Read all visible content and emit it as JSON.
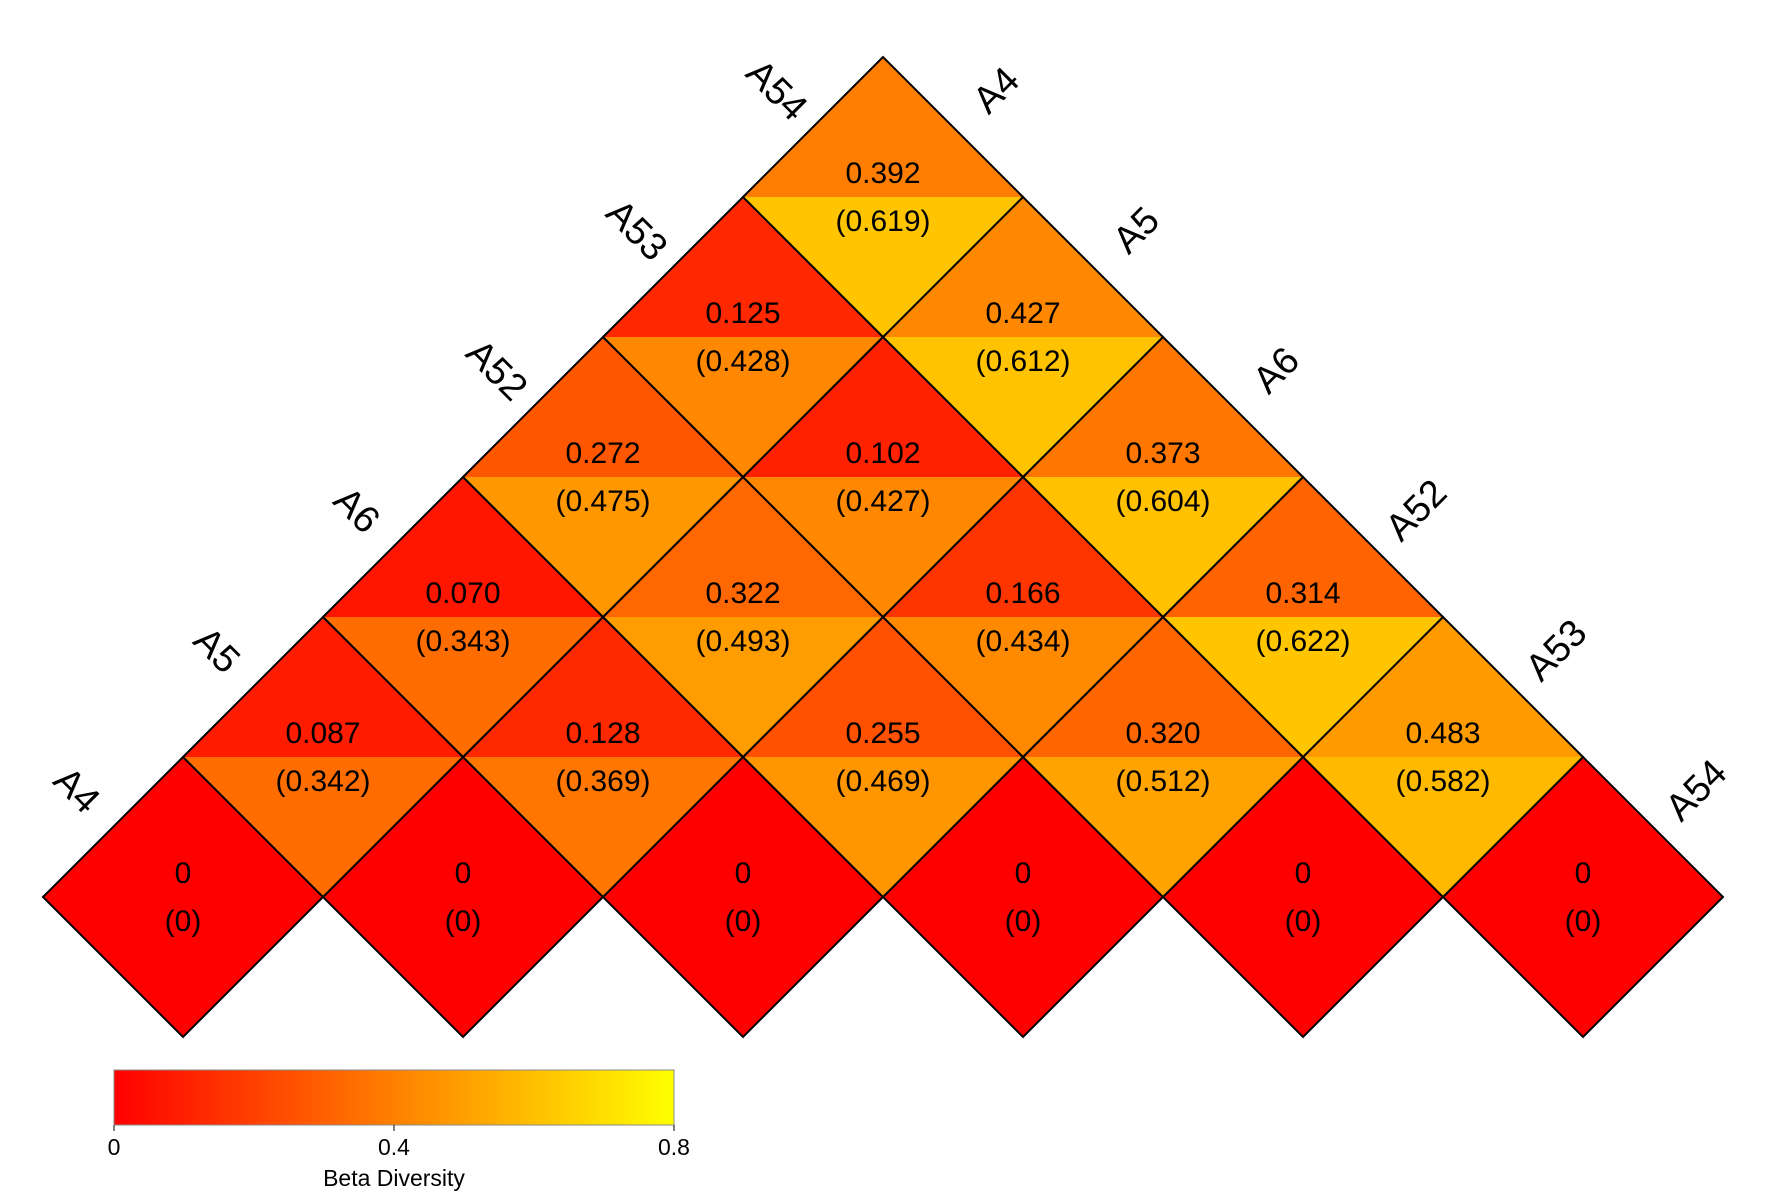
{
  "chart_data": {
    "type": "heatmap",
    "layout": "upper-triangle rotated 45 degrees",
    "samples": [
      "A4",
      "A5",
      "A6",
      "A52",
      "A53",
      "A54"
    ],
    "cells": [
      {
        "row": "A4",
        "col": "A4",
        "value": "0",
        "paren": "(0)",
        "v": 0,
        "p": 0
      },
      {
        "row": "A5",
        "col": "A5",
        "value": "0",
        "paren": "(0)",
        "v": 0,
        "p": 0
      },
      {
        "row": "A6",
        "col": "A6",
        "value": "0",
        "paren": "(0)",
        "v": 0,
        "p": 0
      },
      {
        "row": "A52",
        "col": "A52",
        "value": "0",
        "paren": "(0)",
        "v": 0,
        "p": 0
      },
      {
        "row": "A53",
        "col": "A53",
        "value": "0",
        "paren": "(0)",
        "v": 0,
        "p": 0
      },
      {
        "row": "A54",
        "col": "A54",
        "value": "0",
        "paren": "(0)",
        "v": 0,
        "p": 0
      },
      {
        "row": "A4",
        "col": "A5",
        "value": "0.087",
        "paren": "(0.342)",
        "v": 0.087,
        "p": 0.342
      },
      {
        "row": "A5",
        "col": "A6",
        "value": "0.128",
        "paren": "(0.369)",
        "v": 0.128,
        "p": 0.369
      },
      {
        "row": "A6",
        "col": "A52",
        "value": "0.255",
        "paren": "(0.469)",
        "v": 0.255,
        "p": 0.469
      },
      {
        "row": "A52",
        "col": "A53",
        "value": "0.320",
        "paren": "(0.512)",
        "v": 0.32,
        "p": 0.512
      },
      {
        "row": "A53",
        "col": "A54",
        "value": "0.483",
        "paren": "(0.582)",
        "v": 0.483,
        "p": 0.582
      },
      {
        "row": "A4",
        "col": "A6",
        "value": "0.070",
        "paren": "(0.343)",
        "v": 0.07,
        "p": 0.343
      },
      {
        "row": "A5",
        "col": "A52",
        "value": "0.322",
        "paren": "(0.493)",
        "v": 0.322,
        "p": 0.493
      },
      {
        "row": "A6",
        "col": "A53",
        "value": "0.166",
        "paren": "(0.434)",
        "v": 0.166,
        "p": 0.434
      },
      {
        "row": "A52",
        "col": "A54",
        "value": "0.314",
        "paren": "(0.622)",
        "v": 0.314,
        "p": 0.622
      },
      {
        "row": "A4",
        "col": "A52",
        "value": "0.272",
        "paren": "(0.475)",
        "v": 0.272,
        "p": 0.475
      },
      {
        "row": "A5",
        "col": "A53",
        "value": "0.102",
        "paren": "(0.427)",
        "v": 0.102,
        "p": 0.427
      },
      {
        "row": "A6",
        "col": "A54",
        "value": "0.373",
        "paren": "(0.604)",
        "v": 0.373,
        "p": 0.604
      },
      {
        "row": "A4",
        "col": "A53",
        "value": "0.125",
        "paren": "(0.428)",
        "v": 0.125,
        "p": 0.428
      },
      {
        "row": "A5",
        "col": "A54",
        "value": "0.427",
        "paren": "(0.612)",
        "v": 0.427,
        "p": 0.612
      },
      {
        "row": "A4",
        "col": "A54",
        "value": "0.392",
        "paren": "(0.619)",
        "v": 0.392,
        "p": 0.619
      }
    ],
    "colorbar": {
      "title": "Beta Diversity",
      "min": 0,
      "max": 0.8,
      "ticks": [
        "0",
        "0.4",
        "0.8"
      ],
      "colors": [
        "#ff0000",
        "#ff8000",
        "#ffff00"
      ]
    }
  }
}
